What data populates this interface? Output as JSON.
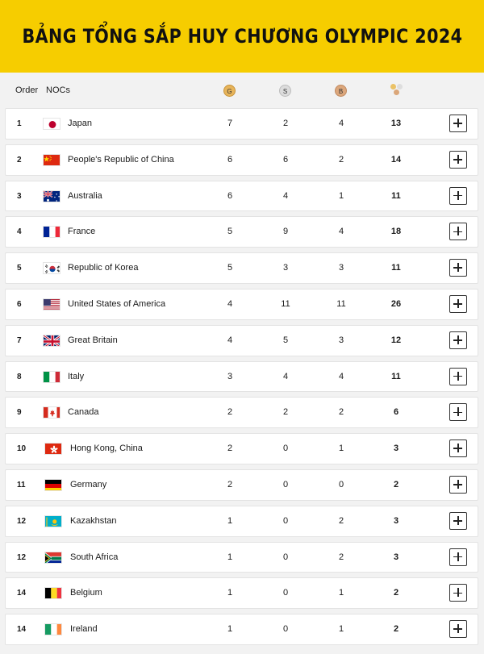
{
  "title": "BẢNG TỔNG SẮP HUY CHƯƠNG OLYMPIC 2024",
  "header": {
    "order": "Order",
    "nocs": "NOCs",
    "gold": "G",
    "silver": "S",
    "bronze": "B"
  },
  "colors": {
    "banner": "#f6cd00",
    "gold": "#e7b45a",
    "silver": "#dcdcdc",
    "bronze": "#dca77c"
  },
  "rows": [
    {
      "order": "1",
      "flag": "japan-flag-icon",
      "country": "Japan",
      "gold": "7",
      "silver": "2",
      "bronze": "4",
      "total": "13"
    },
    {
      "order": "2",
      "flag": "china-flag-icon",
      "country": "People's Republic of China",
      "gold": "6",
      "silver": "6",
      "bronze": "2",
      "total": "14"
    },
    {
      "order": "3",
      "flag": "australia-flag-icon",
      "country": "Australia",
      "gold": "6",
      "silver": "4",
      "bronze": "1",
      "total": "11"
    },
    {
      "order": "4",
      "flag": "france-flag-icon",
      "country": "France",
      "gold": "5",
      "silver": "9",
      "bronze": "4",
      "total": "18"
    },
    {
      "order": "5",
      "flag": "korea-flag-icon",
      "country": "Republic of Korea",
      "gold": "5",
      "silver": "3",
      "bronze": "3",
      "total": "11"
    },
    {
      "order": "6",
      "flag": "usa-flag-icon",
      "country": "United States of America",
      "gold": "4",
      "silver": "11",
      "bronze": "11",
      "total": "26"
    },
    {
      "order": "7",
      "flag": "great-britain-flag-icon",
      "country": "Great Britain",
      "gold": "4",
      "silver": "5",
      "bronze": "3",
      "total": "12"
    },
    {
      "order": "8",
      "flag": "italy-flag-icon",
      "country": "Italy",
      "gold": "3",
      "silver": "4",
      "bronze": "4",
      "total": "11"
    },
    {
      "order": "9",
      "flag": "canada-flag-icon",
      "country": "Canada",
      "gold": "2",
      "silver": "2",
      "bronze": "2",
      "total": "6"
    },
    {
      "order": "10",
      "flag": "hong-kong-flag-icon",
      "country": "Hong Kong, China",
      "gold": "2",
      "silver": "0",
      "bronze": "1",
      "total": "3"
    },
    {
      "order": "11",
      "flag": "germany-flag-icon",
      "country": "Germany",
      "gold": "2",
      "silver": "0",
      "bronze": "0",
      "total": "2"
    },
    {
      "order": "12",
      "flag": "kazakhstan-flag-icon",
      "country": "Kazakhstan",
      "gold": "1",
      "silver": "0",
      "bronze": "2",
      "total": "3"
    },
    {
      "order": "12",
      "flag": "south-africa-flag-icon",
      "country": "South Africa",
      "gold": "1",
      "silver": "0",
      "bronze": "2",
      "total": "3"
    },
    {
      "order": "14",
      "flag": "belgium-flag-icon",
      "country": "Belgium",
      "gold": "1",
      "silver": "0",
      "bronze": "1",
      "total": "2"
    },
    {
      "order": "14",
      "flag": "ireland-flag-icon",
      "country": "Ireland",
      "gold": "1",
      "silver": "0",
      "bronze": "1",
      "total": "2"
    }
  ]
}
